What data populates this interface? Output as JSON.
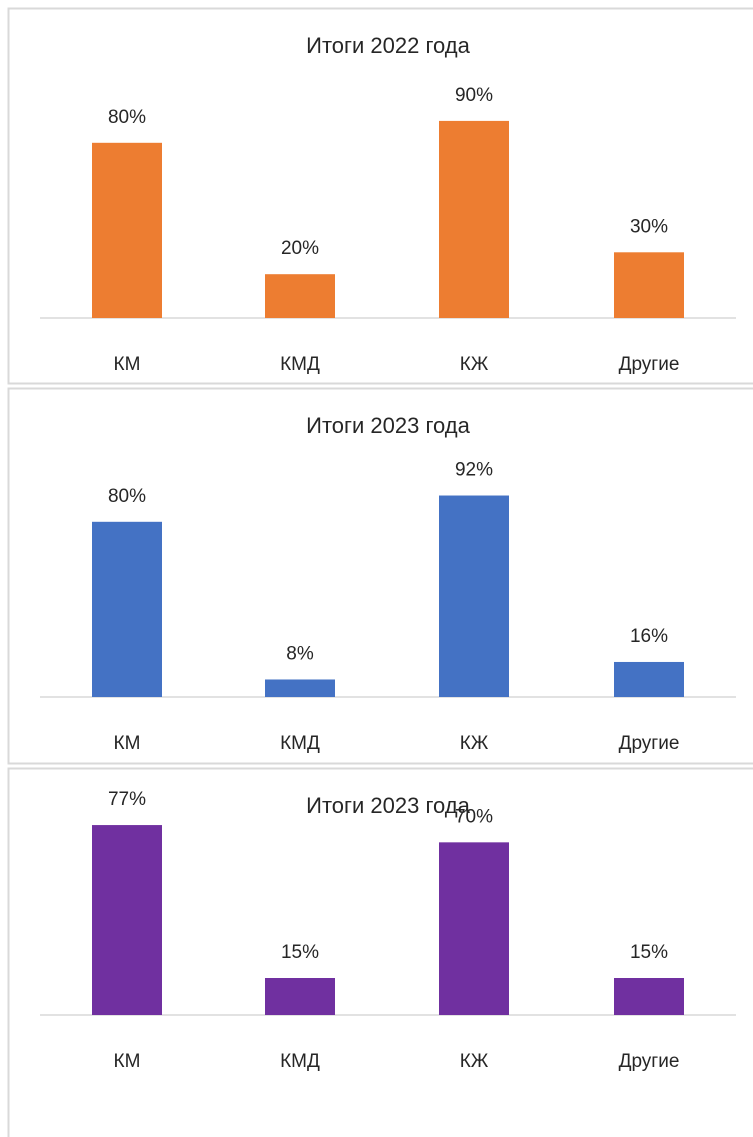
{
  "chart_data": [
    {
      "type": "bar",
      "title": "Итоги 2022 года",
      "categories": [
        "КМ",
        "КМД",
        "КЖ",
        "Другие"
      ],
      "values": [
        80,
        20,
        90,
        30
      ],
      "value_labels": [
        "80%",
        "20%",
        "90%",
        "30%"
      ],
      "color": "#ed7d31",
      "ylim": [
        0,
        100
      ]
    },
    {
      "type": "bar",
      "title": "Итоги 2023 года",
      "categories": [
        "КМ",
        "КМД",
        "КЖ",
        "Другие"
      ],
      "values": [
        80,
        8,
        92,
        16
      ],
      "value_labels": [
        "80%",
        "8%",
        "92%",
        "16%"
      ],
      "color": "#4472c4",
      "ylim": [
        0,
        100
      ]
    },
    {
      "type": "bar",
      "title": "Итоги 2023 года",
      "categories": [
        "КМ",
        "КМД",
        "КЖ",
        "Другие"
      ],
      "values": [
        77,
        15,
        70,
        15
      ],
      "value_labels": [
        "77%",
        "15%",
        "70%",
        "15%"
      ],
      "color": "#7030a0",
      "ylim": [
        0,
        90
      ]
    }
  ]
}
